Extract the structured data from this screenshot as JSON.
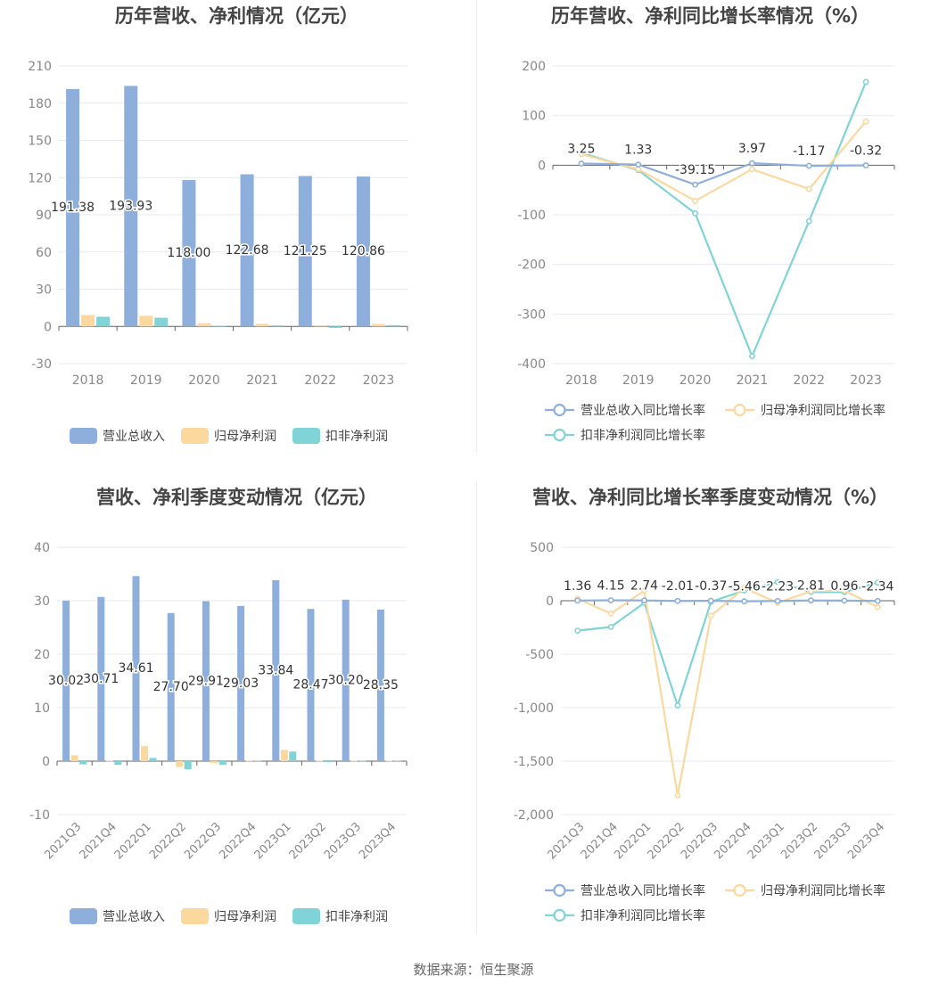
{
  "footer": "数据来源：恒生聚源",
  "colors": {
    "revenue": "#8eaedb",
    "net_profit": "#fbd89e",
    "deducted_profit": "#80d3d6",
    "grid": "#e6e9f0",
    "axis": "#666666",
    "tick": "#888888"
  },
  "chart_data": [
    {
      "id": "annual-amount",
      "type": "bar",
      "title": "历年营收、净利情况（亿元）",
      "categories": [
        "2018",
        "2019",
        "2020",
        "2021",
        "2022",
        "2023"
      ],
      "series": [
        {
          "name": "营业总收入",
          "values": [
            191.38,
            193.93,
            118.0,
            122.68,
            121.25,
            120.86
          ]
        },
        {
          "name": "归母净利润",
          "values": [
            9.2,
            8.5,
            2.6,
            2.1,
            1.0,
            2.0
          ]
        },
        {
          "name": "扣非净利润",
          "values": [
            7.8,
            7.0,
            0.5,
            0.8,
            -1.2,
            1.0
          ]
        }
      ],
      "data_labels": [
        "191.38",
        "193.93",
        "118.00",
        "122.68",
        "121.25",
        "120.86"
      ],
      "ylim": [
        -30,
        210
      ],
      "yticks": [
        -30,
        0,
        30,
        60,
        90,
        120,
        150,
        180,
        210
      ],
      "legend": "bottom"
    },
    {
      "id": "annual-growth",
      "type": "line",
      "title": "历年营收、净利同比增长率情况（%）",
      "categories": [
        "2018",
        "2019",
        "2020",
        "2021",
        "2022",
        "2023"
      ],
      "series": [
        {
          "name": "营业总收入同比增长率",
          "values": [
            3.25,
            1.33,
            -39.15,
            3.97,
            -1.17,
            -0.32
          ]
        },
        {
          "name": "归母净利润同比增长率",
          "values": [
            22,
            -8,
            -72,
            -8,
            -48,
            88
          ]
        },
        {
          "name": "扣非净利润同比增长率",
          "values": [
            25,
            -10,
            -97,
            -385,
            -113,
            168
          ]
        }
      ],
      "data_labels": [
        "3.25",
        "1.33",
        "-39.15",
        "3.97",
        "-1.17",
        "-0.32"
      ],
      "ylim": [
        -400,
        200
      ],
      "yticks": [
        -400,
        -300,
        -200,
        -100,
        0,
        100,
        200
      ],
      "legend": "bottom"
    },
    {
      "id": "quarterly-amount",
      "type": "bar",
      "title": "营收、净利季度变动情况（亿元）",
      "categories": [
        "2021Q3",
        "2021Q4",
        "2022Q1",
        "2022Q2",
        "2022Q3",
        "2022Q4",
        "2023Q1",
        "2023Q2",
        "2023Q3",
        "2023Q4"
      ],
      "series": [
        {
          "name": "营业总收入",
          "values": [
            30.02,
            30.71,
            34.61,
            27.7,
            29.91,
            29.03,
            33.84,
            28.47,
            30.2,
            28.35
          ]
        },
        {
          "name": "归母净利润",
          "values": [
            1.1,
            0.1,
            2.8,
            -1.1,
            -0.4,
            0.1,
            2.1,
            0.1,
            0.1,
            0.1
          ]
        },
        {
          "name": "扣非净利润",
          "values": [
            -0.6,
            -0.7,
            0.6,
            -1.5,
            -0.7,
            0.1,
            1.8,
            -0.2,
            0.1,
            0.1
          ]
        }
      ],
      "data_labels": [
        "30.02",
        "30.71",
        "34.61",
        "27.70",
        "29.91",
        "29.03",
        "33.84",
        "28.47",
        "30.20",
        "28.35"
      ],
      "ylim": [
        -10,
        40
      ],
      "yticks": [
        -10,
        0,
        10,
        20,
        30,
        40
      ],
      "legend": "bottom"
    },
    {
      "id": "quarterly-growth",
      "type": "line",
      "title": "营收、净利同比增长率季度变动情况（%）",
      "categories": [
        "2021Q3",
        "2021Q4",
        "2022Q1",
        "2022Q2",
        "2022Q3",
        "2022Q4",
        "2023Q1",
        "2023Q2",
        "2023Q3",
        "2023Q4"
      ],
      "series": [
        {
          "name": "营业总收入同比增长率",
          "values": [
            1.36,
            4.15,
            2.74,
            -2.01,
            -0.37,
            -5.46,
            -2.23,
            2.81,
            0.96,
            -2.34
          ]
        },
        {
          "name": "归母净利润同比增长率",
          "values": [
            20,
            -120,
            95,
            -1820,
            -140,
            120,
            -20,
            90,
            95,
            -60
          ]
        },
        {
          "name": "扣非净利润同比增长率",
          "values": [
            -280,
            -245,
            -20,
            -980,
            -10,
            95,
            175,
            80,
            80,
            170
          ]
        }
      ],
      "data_labels": [
        "1.36",
        "4.15",
        "2.74",
        "-2.01",
        "-0.37",
        "-5.46",
        "-2.23",
        "2.81",
        "0.96",
        "-2.34"
      ],
      "ylim": [
        -2000,
        500
      ],
      "yticks": [
        -2000,
        -1500,
        -1000,
        -500,
        0,
        500
      ],
      "yticklabels": [
        "-2,000",
        "-1,500",
        "-1,000",
        "-500",
        "0",
        "500"
      ],
      "legend": "bottom"
    }
  ]
}
